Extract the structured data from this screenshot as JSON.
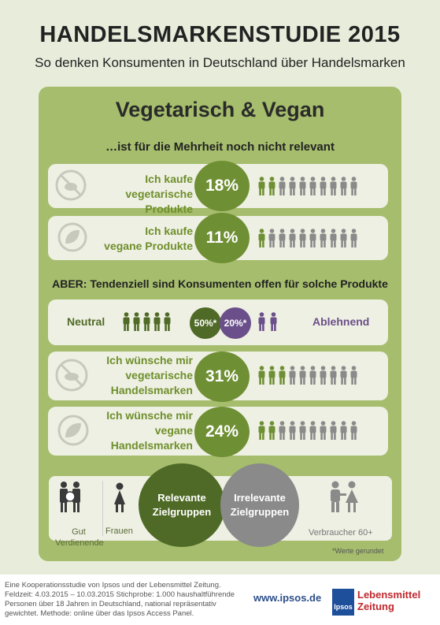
{
  "header": {
    "title": "HANDELSMARKENSTUDIE 2015",
    "subtitle": "So denken Konsumenten in Deutschland über Handelsmarken"
  },
  "panel": {
    "title": "Vegetarisch & Vegan",
    "intro": "…ist für die Mehrheit noch nicht relevant",
    "rows_top": [
      {
        "line1": "Ich kaufe",
        "line2": "vegetarische Produkte",
        "percent": "18%",
        "filled": 2
      },
      {
        "line1": "Ich kaufe",
        "line2": "vegane Produkte",
        "percent": "11%",
        "filled": 1
      }
    ],
    "aber": "ABER: Tendenziell sind Konsumenten offen für solche Produkte",
    "neutral": {
      "label": "Neutral",
      "percent": "50%*"
    },
    "ablehnend": {
      "label": "Ablehnend",
      "percent": "20%*"
    },
    "rows_bottom": [
      {
        "line1": "Ich wünsche mir",
        "line2": "vegetarische",
        "line3": "Handelsmarken",
        "percent": "31%",
        "filled": 3
      },
      {
        "line1": "Ich wünsche mir",
        "line2": "vegane",
        "line3": "Handelsmarken",
        "percent": "24%",
        "filled": 2
      }
    ],
    "groups": {
      "gut1": "Gut",
      "gut2": "Verdienende",
      "frauen": "Frauen",
      "relevant1": "Relevante",
      "relevant2": "Zielgruppen",
      "irrelevant1": "Irrelevante",
      "irrelevant2": "Zielgruppen",
      "verbraucher": "Verbraucher 60+",
      "gerundet": "*Werte gerundet"
    }
  },
  "footer": {
    "l1": "Eine Kooperationsstudie von Ipsos und der Lebensmittel Zeitung.",
    "l2": "Feldzeit: 4.03.2015 – 10.03.2015  Stichprobe: 1.000 haushaltführende",
    "l3": "Personen über 18 Jahren in Deutschland, national repräsentativ",
    "l4": "gewichtet. Methode: online über das Ipsos Access Panel.",
    "url": "www.ipsos.de",
    "ipsos": "Ipsos",
    "lz1": "Lebensmittel",
    "lz2": "Zeitung"
  },
  "colors": {
    "green": "#6f8f34",
    "gray": "#8a8a8a",
    "purple": "#6a4f8a",
    "darkgreen": "#4f6a26"
  }
}
